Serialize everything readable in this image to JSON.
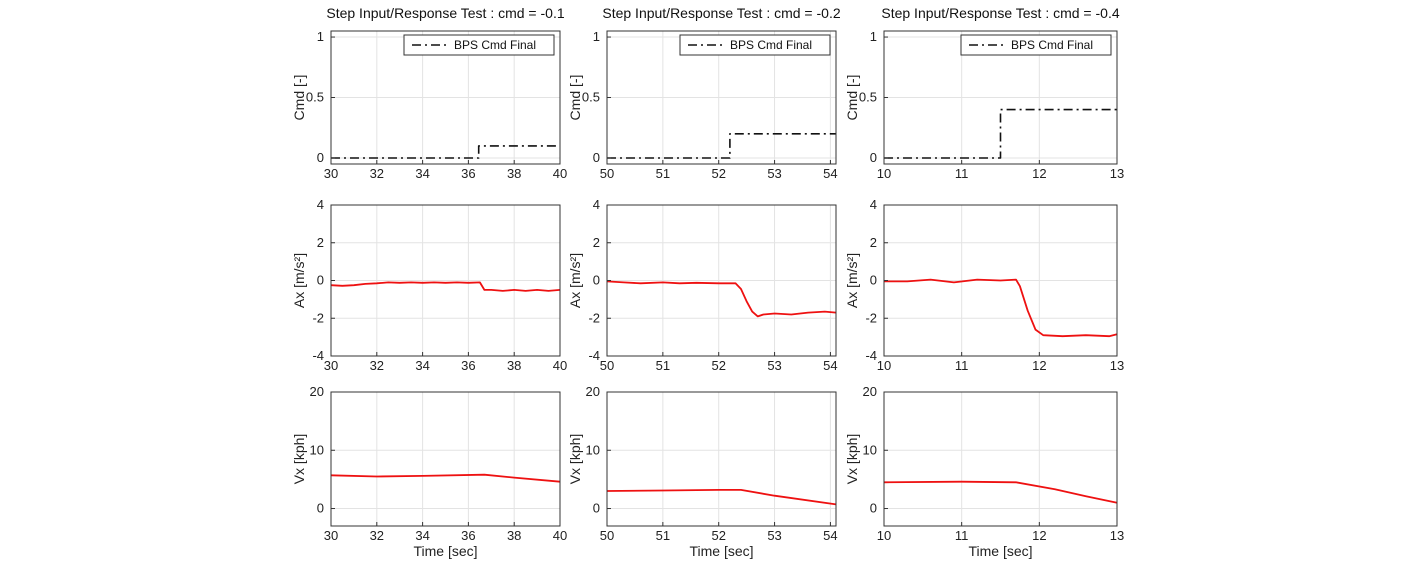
{
  "chart_data": [
    {
      "type": "line",
      "title": "Step Input/Response Test : cmd = -0.1",
      "xlabel": "",
      "ylabel": "Cmd [-]",
      "xlim": [
        30,
        40
      ],
      "ylim": [
        -0.05,
        1.05
      ],
      "xticks": [
        30,
        32,
        34,
        36,
        38,
        40
      ],
      "yticks": [
        0,
        0.5,
        1
      ],
      "grid": true,
      "legend_position": "top-right",
      "series": [
        {
          "name": "BPS Cmd Final",
          "color": "#111111",
          "style": "dash-dot",
          "x": [
            30,
            36.45,
            36.45,
            40
          ],
          "y": [
            0,
            0,
            0.1,
            0.1
          ]
        }
      ]
    },
    {
      "type": "line",
      "title": "Step Input/Response Test : cmd = -0.2",
      "xlabel": "",
      "ylabel": "Cmd [-]",
      "xlim": [
        50,
        54.1
      ],
      "ylim": [
        -0.05,
        1.05
      ],
      "xticks": [
        50,
        51,
        52,
        53,
        54
      ],
      "yticks": [
        0,
        0.5,
        1
      ],
      "grid": true,
      "legend_position": "top-right",
      "series": [
        {
          "name": "BPS Cmd Final",
          "color": "#111111",
          "style": "dash-dot",
          "x": [
            50,
            52.2,
            52.2,
            54.1
          ],
          "y": [
            0,
            0,
            0.2,
            0.2
          ]
        }
      ]
    },
    {
      "type": "line",
      "title": "Step Input/Response Test : cmd = -0.4",
      "xlabel": "",
      "ylabel": "Cmd [-]",
      "xlim": [
        10,
        13
      ],
      "ylim": [
        -0.05,
        1.05
      ],
      "xticks": [
        10,
        11,
        12,
        13
      ],
      "yticks": [
        0,
        0.5,
        1
      ],
      "grid": true,
      "legend_position": "top-right",
      "series": [
        {
          "name": "BPS Cmd Final",
          "color": "#111111",
          "style": "dash-dot",
          "x": [
            10,
            11.5,
            11.5,
            13
          ],
          "y": [
            0,
            0,
            0.4,
            0.4
          ]
        }
      ]
    },
    {
      "type": "line",
      "title": "",
      "xlabel": "",
      "ylabel": "Ax [m/s²]",
      "xlim": [
        30,
        40
      ],
      "ylim": [
        -4,
        4
      ],
      "xticks": [
        30,
        32,
        34,
        36,
        38,
        40
      ],
      "yticks": [
        -4,
        -2,
        0,
        2,
        4
      ],
      "grid": true,
      "series": [
        {
          "color": "#ee1111",
          "style": "solid",
          "x": [
            30,
            30.5,
            31,
            31.5,
            32,
            32.5,
            33,
            33.5,
            34,
            34.5,
            35,
            35.5,
            36,
            36.5,
            36.7,
            37,
            37.5,
            38,
            38.5,
            39,
            39.5,
            40
          ],
          "y": [
            -0.25,
            -0.28,
            -0.25,
            -0.18,
            -0.15,
            -0.1,
            -0.12,
            -0.1,
            -0.12,
            -0.1,
            -0.12,
            -0.1,
            -0.12,
            -0.1,
            -0.5,
            -0.5,
            -0.55,
            -0.5,
            -0.55,
            -0.5,
            -0.55,
            -0.5
          ]
        }
      ]
    },
    {
      "type": "line",
      "title": "",
      "xlabel": "",
      "ylabel": "Ax [m/s²]",
      "xlim": [
        50,
        54.1
      ],
      "ylim": [
        -4,
        4
      ],
      "xticks": [
        50,
        51,
        52,
        53,
        54
      ],
      "yticks": [
        -4,
        -2,
        0,
        2,
        4
      ],
      "grid": true,
      "series": [
        {
          "color": "#ee1111",
          "style": "solid",
          "x": [
            50,
            50.3,
            50.6,
            51,
            51.3,
            51.6,
            52,
            52.3,
            52.4,
            52.5,
            52.6,
            52.7,
            52.8,
            53,
            53.3,
            53.6,
            53.9,
            54.1
          ],
          "y": [
            -0.05,
            -0.1,
            -0.15,
            -0.1,
            -0.15,
            -0.12,
            -0.15,
            -0.15,
            -0.45,
            -1.1,
            -1.65,
            -1.9,
            -1.8,
            -1.75,
            -1.8,
            -1.7,
            -1.65,
            -1.7
          ]
        }
      ]
    },
    {
      "type": "line",
      "title": "",
      "xlabel": "",
      "ylabel": "Ax [m/s²]",
      "xlim": [
        10,
        13
      ],
      "ylim": [
        -4,
        4
      ],
      "xticks": [
        10,
        11,
        12,
        13
      ],
      "yticks": [
        -4,
        -2,
        0,
        2,
        4
      ],
      "grid": true,
      "series": [
        {
          "color": "#ee1111",
          "style": "solid",
          "x": [
            10,
            10.3,
            10.6,
            10.9,
            11.2,
            11.5,
            11.7,
            11.75,
            11.85,
            11.95,
            12.05,
            12.3,
            12.6,
            12.9,
            13
          ],
          "y": [
            -0.05,
            -0.05,
            0.05,
            -0.1,
            0.05,
            0.0,
            0.05,
            -0.3,
            -1.6,
            -2.6,
            -2.9,
            -2.95,
            -2.9,
            -2.95,
            -2.85
          ]
        }
      ]
    },
    {
      "type": "line",
      "title": "",
      "xlabel": "Time [sec]",
      "ylabel": "Vx [kph]",
      "xlim": [
        30,
        40
      ],
      "ylim": [
        -3,
        20
      ],
      "xticks": [
        30,
        32,
        34,
        36,
        38,
        40
      ],
      "yticks": [
        0,
        10,
        20
      ],
      "grid": true,
      "series": [
        {
          "color": "#ee1111",
          "style": "solid",
          "x": [
            30,
            32,
            34,
            36.7,
            38,
            40
          ],
          "y": [
            5.7,
            5.5,
            5.6,
            5.8,
            5.3,
            4.6
          ]
        }
      ]
    },
    {
      "type": "line",
      "title": "",
      "xlabel": "Time [sec]",
      "ylabel": "Vx [kph]",
      "xlim": [
        50,
        54.1
      ],
      "ylim": [
        -3,
        20
      ],
      "xticks": [
        50,
        51,
        52,
        53,
        54
      ],
      "yticks": [
        0,
        10,
        20
      ],
      "grid": true,
      "series": [
        {
          "color": "#ee1111",
          "style": "solid",
          "x": [
            50,
            51,
            52,
            52.4,
            53,
            54.1
          ],
          "y": [
            3.0,
            3.1,
            3.2,
            3.2,
            2.2,
            0.7
          ]
        }
      ]
    },
    {
      "type": "line",
      "title": "",
      "xlabel": "Time [sec]",
      "ylabel": "Vx [kph]",
      "xlim": [
        10,
        13
      ],
      "ylim": [
        -3,
        20
      ],
      "xticks": [
        10,
        11,
        12,
        13
      ],
      "yticks": [
        0,
        10,
        20
      ],
      "grid": true,
      "series": [
        {
          "color": "#ee1111",
          "style": "solid",
          "x": [
            10,
            11,
            11.7,
            12.2,
            12.6,
            13
          ],
          "y": [
            4.5,
            4.6,
            4.5,
            3.3,
            2.1,
            1.0
          ]
        }
      ]
    }
  ]
}
